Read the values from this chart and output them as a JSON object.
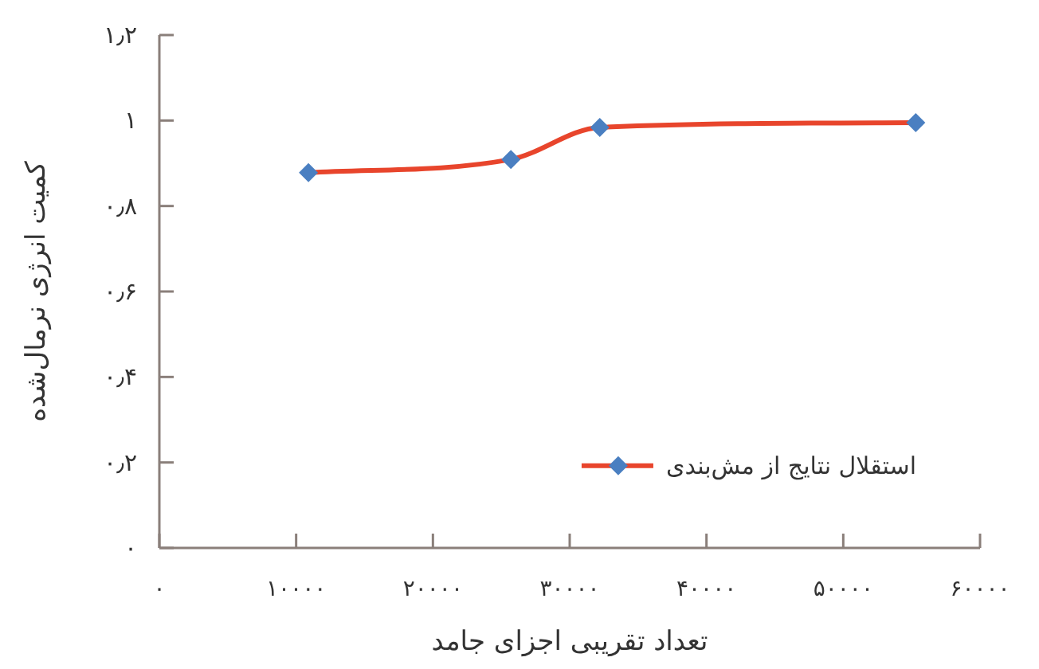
{
  "chart_data": {
    "type": "line",
    "xlabel": "تعداد تقریبی اجزای جامد",
    "ylabel": "کمیت انرژی نرمال‌شده",
    "x": [
      10900,
      25700,
      32200,
      55300
    ],
    "series": [
      {
        "name": "استقلال نتایج از مش‌بندی",
        "color": "#e8452c",
        "values": [
          0.878,
          0.909,
          0.984,
          0.995
        ]
      }
    ],
    "xlim": [
      0,
      60000
    ],
    "xticks": [
      {
        "value": 0,
        "label": "۰"
      },
      {
        "value": 10000,
        "label": "۱۰۰۰۰"
      },
      {
        "value": 20000,
        "label": "۲۰۰۰۰"
      },
      {
        "value": 30000,
        "label": "۳۰۰۰۰"
      },
      {
        "value": 40000,
        "label": "۴۰۰۰۰"
      },
      {
        "value": 50000,
        "label": "۵۰۰۰۰"
      },
      {
        "value": 60000,
        "label": "۶۰۰۰۰"
      }
    ],
    "ylim": [
      0,
      1.2
    ],
    "yticks": [
      {
        "value": 0,
        "label": "۰"
      },
      {
        "value": 0.2,
        "label": "۰٫۲"
      },
      {
        "value": 0.4,
        "label": "۰٫۴"
      },
      {
        "value": 0.6,
        "label": "۰٫۶"
      },
      {
        "value": 0.8,
        "label": "۰٫۸"
      },
      {
        "value": 1,
        "label": "۱"
      },
      {
        "value": 1.2,
        "label": "۱٫۲"
      }
    ],
    "grid": false,
    "legend": "bottom right",
    "marker": "diamond",
    "line_style": "solid"
  }
}
